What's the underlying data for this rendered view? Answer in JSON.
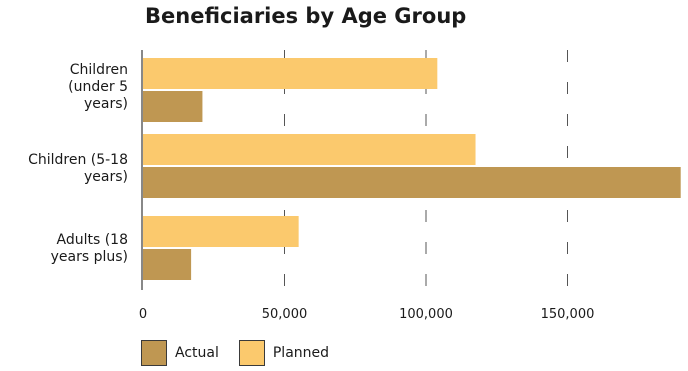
{
  "chart_data": {
    "type": "bar",
    "orientation": "horizontal",
    "title": "Beneficiaries by Age Group",
    "categories": [
      "Children (under 5 years)",
      "Children (5-18 years)",
      "Adults (18 years plus)"
    ],
    "series": [
      {
        "name": "Planned",
        "values": [
          104000,
          117500,
          55000
        ],
        "color": "#fbc96d"
      },
      {
        "name": "Actual",
        "values": [
          21000,
          190000,
          17000
        ],
        "color": "#bf9752"
      }
    ],
    "xlim": [
      0,
      190000
    ],
    "xticks": [
      0,
      50000,
      100000,
      150000
    ],
    "xtick_labels": [
      "0",
      "50,000",
      "100,000",
      "150,000"
    ],
    "grid": "dashed vertical",
    "legend": [
      {
        "name": "Actual",
        "color": "#bf9752"
      },
      {
        "name": "Planned",
        "color": "#fbc96d"
      }
    ],
    "legend_position": "bottom"
  }
}
